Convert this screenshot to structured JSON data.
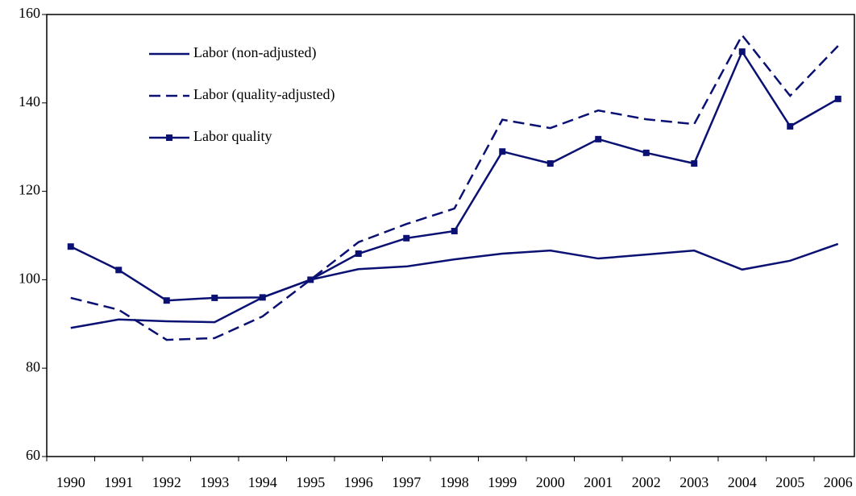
{
  "chart_data": {
    "type": "line",
    "categories": [
      "1990",
      "1991",
      "1992",
      "1993",
      "1994",
      "1995",
      "1996",
      "1997",
      "1998",
      "1999",
      "2000",
      "2001",
      "2002",
      "2003",
      "2004",
      "2005",
      "2006"
    ],
    "series": [
      {
        "name": "Labor (non-adjusted)",
        "color": "#0a1172",
        "line_style": "solid",
        "values": [
          89.1,
          91.0,
          90.6,
          90.4,
          96.0,
          100.0,
          102.4,
          103.0,
          104.6,
          105.9,
          106.6,
          104.8,
          105.7,
          106.6,
          102.3,
          104.3,
          108.1
        ]
      },
      {
        "name": "Labor (quality-adjusted)",
        "color": "#0a1172",
        "line_style": "dashed",
        "values": [
          95.9,
          93.2,
          86.4,
          86.8,
          91.7,
          100.0,
          108.5,
          112.6,
          116.1,
          136.2,
          134.3,
          138.3,
          136.3,
          135.2,
          155.3,
          141.6,
          152.9
        ]
      },
      {
        "name": "Labor quality",
        "color": "#0a1172",
        "line_style": "solid",
        "marker": "square",
        "values": [
          107.5,
          102.2,
          95.3,
          95.9,
          96.0,
          100.0,
          105.9,
          109.4,
          111.0,
          129.0,
          126.3,
          131.8,
          128.7,
          126.3,
          151.6,
          134.7,
          140.9
        ]
      }
    ],
    "ylim": [
      60,
      160
    ],
    "yticks": [
      60,
      80,
      100,
      120,
      140,
      160
    ],
    "legend": "upper left",
    "grid": false
  }
}
